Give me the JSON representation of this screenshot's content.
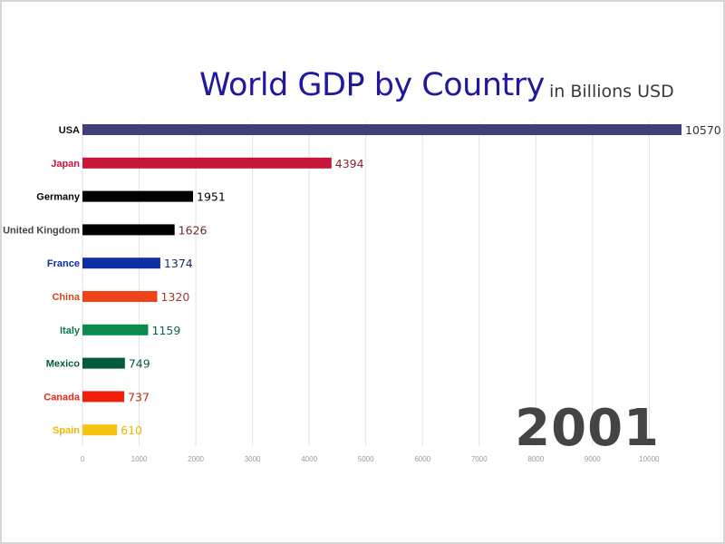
{
  "chart_data": {
    "type": "bar",
    "orientation": "horizontal",
    "title": "World GDP by Country",
    "subtitle": "in Billions USD",
    "annotation": "2001",
    "xlim": [
      0,
      10570
    ],
    "xticks": [
      "0",
      "1000",
      "2000",
      "3000",
      "4000",
      "5000",
      "6000",
      "7000",
      "8000",
      "9000",
      "10000"
    ],
    "grid": true,
    "categories": [
      "USA",
      "Japan",
      "Germany",
      "United Kingdom",
      "France",
      "China",
      "Italy",
      "Mexico",
      "Canada",
      "Spain"
    ],
    "values": [
      10570,
      4394,
      1951,
      1626,
      1374,
      1320,
      1159,
      749,
      737,
      610
    ],
    "value_labels": [
      "10570",
      "4394",
      "1951",
      "1626",
      "1374",
      "1320",
      "1159",
      "749",
      "737",
      "610"
    ],
    "colors": [
      "#3f4079",
      "#c8163b",
      "#000000",
      "#000000",
      "#0f2ea3",
      "#ee4418",
      "#0a8a4f",
      "#035a41",
      "#f0200c",
      "#f6c40e"
    ],
    "label_colors": [
      "#111111",
      "#c8163b",
      "#000000",
      "#444444",
      "#0f2ea3",
      "#d9421a",
      "#0a7a4a",
      "#035a41",
      "#e0281a",
      "#f0b800"
    ],
    "value_label_colors": [
      "#333333",
      "#8b2432",
      "#000000",
      "#6b2a2a",
      "#1d2a6b",
      "#9b3a2a",
      "#0a6a44",
      "#035a41",
      "#c0281a",
      "#e8b400"
    ]
  }
}
